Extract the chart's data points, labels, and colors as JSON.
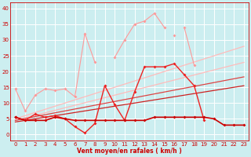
{
  "title": "",
  "xlabel": "Vent moyen/en rafales ( km/h )",
  "background_color": "#cceef0",
  "grid_color": "#ffffff",
  "x": [
    0,
    1,
    2,
    3,
    4,
    5,
    6,
    7,
    8,
    9,
    10,
    11,
    12,
    13,
    14,
    15,
    16,
    17,
    18,
    19,
    20,
    21,
    22,
    23
  ],
  "ylim": [
    -2,
    42
  ],
  "xlim": [
    -0.5,
    23.5
  ],
  "series": [
    {
      "name": "rafales_light",
      "color": "#ff9999",
      "linewidth": 0.8,
      "marker": "D",
      "markersize": 2.0,
      "values": [
        14.5,
        7.5,
        12.5,
        14.5,
        14.0,
        14.5,
        12.0,
        32.0,
        23.0,
        null,
        24.5,
        30.0,
        35.0,
        36.0,
        38.5,
        34.0,
        null,
        34.0,
        22.0,
        null,
        null,
        null,
        null,
        null
      ]
    },
    {
      "name": "rafales_light2",
      "color": "#ff9999",
      "linewidth": 0.8,
      "marker": "D",
      "markersize": 2.0,
      "values": [
        null,
        null,
        null,
        null,
        null,
        null,
        null,
        null,
        null,
        null,
        null,
        null,
        null,
        null,
        null,
        null,
        31.5,
        null,
        null,
        null,
        null,
        null,
        null,
        null
      ]
    },
    {
      "name": "trend_upper1",
      "color": "#ffbbbb",
      "linewidth": 0.9,
      "marker": null,
      "markersize": 0,
      "values": [
        5.0,
        6.0,
        7.0,
        8.0,
        9.0,
        10.0,
        11.0,
        12.0,
        13.0,
        14.0,
        15.0,
        16.0,
        17.0,
        18.0,
        19.0,
        20.0,
        21.0,
        22.0,
        23.0,
        24.0,
        25.0,
        26.0,
        27.0,
        28.0
      ]
    },
    {
      "name": "trend_upper2",
      "color": "#ffbbbb",
      "linewidth": 0.9,
      "marker": null,
      "markersize": 0,
      "values": [
        4.5,
        5.3,
        6.1,
        6.9,
        7.7,
        8.5,
        9.3,
        10.1,
        10.9,
        11.7,
        12.5,
        13.3,
        14.1,
        14.9,
        15.7,
        16.5,
        17.3,
        18.1,
        18.9,
        19.7,
        20.5,
        21.3,
        22.1,
        22.9
      ]
    },
    {
      "name": "moyen_medium",
      "color": "#ee2222",
      "linewidth": 1.0,
      "marker": "D",
      "markersize": 2.0,
      "values": [
        5.5,
        4.5,
        6.5,
        5.5,
        6.0,
        5.0,
        2.5,
        0.5,
        3.5,
        15.5,
        9.5,
        4.5,
        13.5,
        21.5,
        21.5,
        21.5,
        22.5,
        19.0,
        15.5,
        4.5,
        null,
        null,
        null,
        null
      ]
    },
    {
      "name": "trend_mid1",
      "color": "#dd4444",
      "linewidth": 0.9,
      "marker": null,
      "markersize": 0,
      "values": [
        4.5,
        5.1,
        5.7,
        6.3,
        6.9,
        7.5,
        8.1,
        8.7,
        9.3,
        9.9,
        10.5,
        11.1,
        11.7,
        12.3,
        12.9,
        13.5,
        14.1,
        14.7,
        15.3,
        15.9,
        16.5,
        17.1,
        17.7,
        18.3
      ]
    },
    {
      "name": "trend_mid2",
      "color": "#cc2222",
      "linewidth": 0.9,
      "marker": null,
      "markersize": 0,
      "values": [
        4.0,
        4.5,
        5.0,
        5.5,
        6.0,
        6.5,
        7.0,
        7.5,
        8.0,
        8.5,
        9.0,
        9.5,
        10.0,
        10.5,
        11.0,
        11.5,
        12.0,
        12.5,
        13.0,
        13.5,
        14.0,
        14.5,
        15.0,
        15.5
      ]
    },
    {
      "name": "line_flat",
      "color": "#cc0000",
      "linewidth": 1.2,
      "marker": "D",
      "markersize": 2.0,
      "values": [
        5.5,
        4.5,
        4.5,
        4.5,
        5.5,
        5.0,
        4.5,
        4.5,
        4.5,
        4.5,
        4.5,
        4.5,
        4.5,
        4.5,
        5.5,
        5.5,
        5.5,
        5.5,
        5.5,
        5.5,
        5.0,
        3.0,
        3.0,
        3.0
      ]
    }
  ],
  "yticks": [
    0,
    5,
    10,
    15,
    20,
    25,
    30,
    35,
    40
  ],
  "xticks": [
    0,
    1,
    2,
    3,
    4,
    5,
    6,
    7,
    8,
    9,
    10,
    11,
    12,
    13,
    14,
    15,
    16,
    17,
    18,
    19,
    20,
    21,
    22,
    23
  ],
  "tick_fontsize": 5.0,
  "xlabel_fontsize": 5.5
}
